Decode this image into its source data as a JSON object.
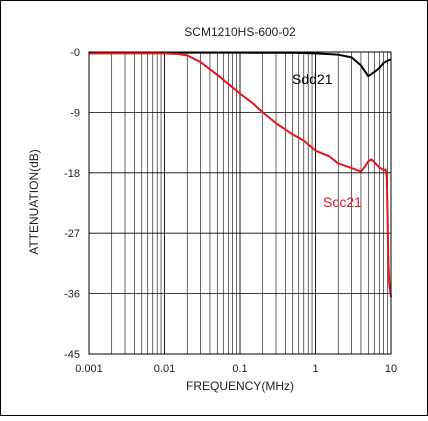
{
  "chart_data": {
    "type": "line",
    "title": "SCM1210HS-600-02",
    "xlabel": "FREQUENCY(MHz)",
    "ylabel": "ATTENUATION(dB)",
    "x_scale": "log",
    "xlim": [
      0.001,
      10
    ],
    "ylim": [
      -45,
      0
    ],
    "x_tick_labels": [
      "0.001",
      "0.01",
      "0.1",
      "1",
      "10"
    ],
    "x_tick_values": [
      0.001,
      0.01,
      0.1,
      1,
      10
    ],
    "y_tick_labels": [
      "-0",
      "-9",
      "-18",
      "-27",
      "-36",
      "-45"
    ],
    "y_tick_values": [
      0,
      -9,
      -18,
      -27,
      -36,
      -45
    ],
    "grid": true,
    "series": [
      {
        "name": "Sdd21",
        "color": "#000000",
        "x": [
          0.001,
          0.01,
          0.1,
          0.5,
          1,
          2,
          3,
          4,
          5,
          6,
          7,
          8,
          9,
          10
        ],
        "y": [
          -0.1,
          -0.1,
          -0.1,
          -0.12,
          -0.2,
          -0.4,
          -0.8,
          -2.0,
          -3.6,
          -3.0,
          -2.4,
          -1.6,
          -1.3,
          -1.1
        ]
      },
      {
        "name": "Scc21",
        "color": "#e8141c",
        "x": [
          0.001,
          0.005,
          0.01,
          0.015,
          0.02,
          0.03,
          0.05,
          0.08,
          0.1,
          0.15,
          0.2,
          0.3,
          0.5,
          0.7,
          1,
          1.5,
          2,
          3,
          4,
          4.5,
          5,
          5.5,
          6,
          7,
          8,
          8.5,
          8.8,
          9,
          9.2,
          9.5,
          10
        ],
        "y": [
          -0.2,
          -0.2,
          -0.2,
          -0.3,
          -0.5,
          -1.5,
          -3.4,
          -5.3,
          -6.2,
          -7.7,
          -9.0,
          -10.6,
          -12.3,
          -13.2,
          -14.7,
          -15.5,
          -16.6,
          -17.3,
          -17.8,
          -17.1,
          -16.3,
          -16.0,
          -16.4,
          -17.2,
          -17.6,
          -17.5,
          -18.8,
          -24.0,
          -31.0,
          -34.5,
          -36.5
        ]
      }
    ],
    "annotations": [
      {
        "text": "Sdd21",
        "series": "Sdd21"
      },
      {
        "text": "Scc21",
        "series": "Scc21"
      }
    ]
  }
}
